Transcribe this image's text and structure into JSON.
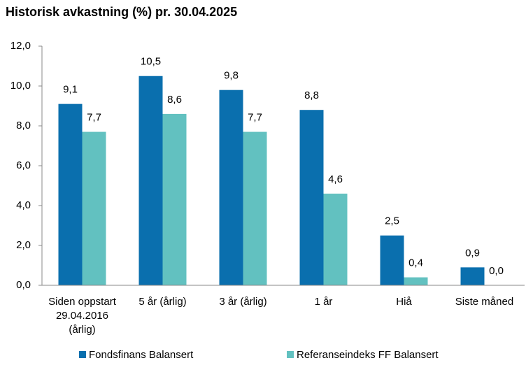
{
  "chart_data": {
    "type": "bar",
    "title": "Historisk avkastning (%) pr. 30.04.2025",
    "categories": [
      "Siden oppstart\n29.04.2016\n(årlig)",
      "5 år (årlig)",
      "3 år (årlig)",
      "1 år",
      "Hiå",
      "Siste måned"
    ],
    "series": [
      {
        "name": "Fondsfinans Balansert",
        "color": "#0a6fae",
        "values": [
          9.1,
          10.5,
          9.8,
          8.8,
          2.5,
          0.9
        ],
        "value_labels": [
          "9,1",
          "10,5",
          "9,8",
          "8,8",
          "2,5",
          "0,9"
        ]
      },
      {
        "name": "Referanseindeks FF Balansert",
        "color": "#62c1c0",
        "values": [
          7.7,
          8.6,
          7.7,
          4.6,
          0.4,
          0.0
        ],
        "value_labels": [
          "7,7",
          "8,6",
          "7,7",
          "4,6",
          "0,4",
          "0,0"
        ]
      }
    ],
    "ylim": [
      0,
      12
    ],
    "yticks": [
      {
        "value": 0,
        "label": "0,0"
      },
      {
        "value": 2,
        "label": "2,0"
      },
      {
        "value": 4,
        "label": "4,0"
      },
      {
        "value": 6,
        "label": "6,0"
      },
      {
        "value": 8,
        "label": "8,0"
      },
      {
        "value": 10,
        "label": "10,0"
      },
      {
        "value": 12,
        "label": "12,0"
      }
    ],
    "grid": false,
    "legend": "bottom"
  }
}
